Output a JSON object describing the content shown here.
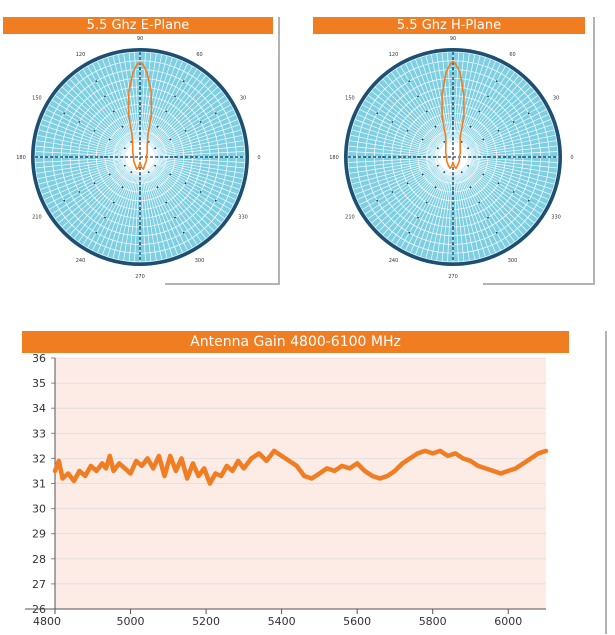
{
  "colors": {
    "header": "#f07d22",
    "curve": "#f07d22",
    "polar_fill": "#7fcfe2",
    "polar_line": "#1f9fc8",
    "polar_ring": "#1c4f72",
    "plot_bg": "#fdece6",
    "grid": "#dddddd"
  },
  "chart_data": [
    {
      "type": "polar",
      "title": "5.5 Ghz E-Plane",
      "angle_labels": [
        "90",
        "60",
        "30",
        "0",
        "330",
        "300",
        "270",
        "240",
        "210",
        "180",
        "150",
        "120"
      ],
      "angles_deg": [
        90,
        60,
        30,
        0,
        330,
        300,
        270,
        240,
        210,
        180,
        150,
        120
      ],
      "pattern": {
        "angle_deg": [
          0,
          30,
          55,
          70,
          75,
          80,
          85,
          88,
          90,
          92,
          95,
          100,
          105,
          110,
          125,
          150,
          180,
          210,
          240,
          255,
          262,
          270,
          278,
          285,
          300,
          330
        ],
        "radius": [
          0.06,
          0.08,
          0.12,
          0.22,
          0.42,
          0.62,
          0.8,
          0.88,
          0.9,
          0.88,
          0.8,
          0.62,
          0.42,
          0.22,
          0.12,
          0.08,
          0.06,
          0.07,
          0.09,
          0.12,
          0.1,
          0.05,
          0.1,
          0.12,
          0.09,
          0.07
        ]
      }
    },
    {
      "type": "polar",
      "title": "5.5 Ghz H-Plane",
      "angle_labels": [
        "90",
        "60",
        "30",
        "0",
        "330",
        "300",
        "270",
        "240",
        "210",
        "180",
        "150",
        "120"
      ],
      "angles_deg": [
        90,
        60,
        30,
        0,
        330,
        300,
        270,
        240,
        210,
        180,
        150,
        120
      ],
      "pattern": {
        "angle_deg": [
          0,
          30,
          55,
          70,
          75,
          80,
          85,
          88,
          90,
          92,
          95,
          100,
          105,
          110,
          125,
          150,
          180,
          210,
          240,
          255,
          262,
          270,
          278,
          285,
          300,
          330
        ],
        "radius": [
          0.06,
          0.08,
          0.12,
          0.2,
          0.4,
          0.6,
          0.8,
          0.88,
          0.91,
          0.88,
          0.8,
          0.6,
          0.4,
          0.2,
          0.12,
          0.08,
          0.06,
          0.07,
          0.09,
          0.11,
          0.09,
          0.05,
          0.09,
          0.11,
          0.09,
          0.07
        ]
      }
    },
    {
      "type": "line",
      "title": "Antenna Gain 4800-6100 MHz",
      "xlim": [
        4800,
        6100
      ],
      "ylim": [
        26,
        36
      ],
      "x_ticks": [
        4800,
        5000,
        5200,
        5400,
        5600,
        5800,
        6000
      ],
      "y_ticks": [
        26,
        27,
        28,
        29,
        30,
        31,
        32,
        33,
        34,
        35,
        36
      ],
      "grid": true,
      "series": [
        {
          "x": [
            4800,
            4810,
            4820,
            4835,
            4850,
            4865,
            4880,
            4895,
            4910,
            4925,
            4935,
            4945,
            4955,
            4970,
            4985,
            5000,
            5015,
            5030,
            5045,
            5060,
            5075,
            5090,
            5105,
            5120,
            5135,
            5150,
            5165,
            5180,
            5195,
            5210,
            5225,
            5240,
            5255,
            5270,
            5285,
            5300,
            5320,
            5340,
            5360,
            5380,
            5400,
            5420,
            5440,
            5460,
            5480,
            5500,
            5520,
            5540,
            5560,
            5580,
            5600,
            5620,
            5640,
            5660,
            5680,
            5700,
            5720,
            5740,
            5760,
            5780,
            5800,
            5820,
            5840,
            5860,
            5880,
            5900,
            5920,
            5940,
            5960,
            5980,
            6000,
            6020,
            6040,
            6060,
            6080,
            6100
          ],
          "y": [
            31.5,
            31.9,
            31.2,
            31.4,
            31.1,
            31.5,
            31.3,
            31.7,
            31.5,
            31.8,
            31.6,
            32.1,
            31.5,
            31.8,
            31.6,
            31.4,
            31.9,
            31.7,
            32.0,
            31.6,
            32.1,
            31.3,
            32.1,
            31.5,
            32.0,
            31.2,
            31.8,
            31.3,
            31.6,
            31.0,
            31.4,
            31.3,
            31.7,
            31.5,
            31.9,
            31.6,
            32.0,
            32.2,
            31.9,
            32.3,
            32.1,
            31.9,
            31.7,
            31.3,
            31.2,
            31.4,
            31.6,
            31.5,
            31.7,
            31.6,
            31.8,
            31.5,
            31.3,
            31.2,
            31.3,
            31.5,
            31.8,
            32.0,
            32.2,
            32.3,
            32.2,
            32.3,
            32.1,
            32.2,
            32.0,
            31.9,
            31.7,
            31.6,
            31.5,
            31.4,
            31.5,
            31.6,
            31.8,
            32.0,
            32.2,
            32.3
          ]
        }
      ]
    }
  ]
}
